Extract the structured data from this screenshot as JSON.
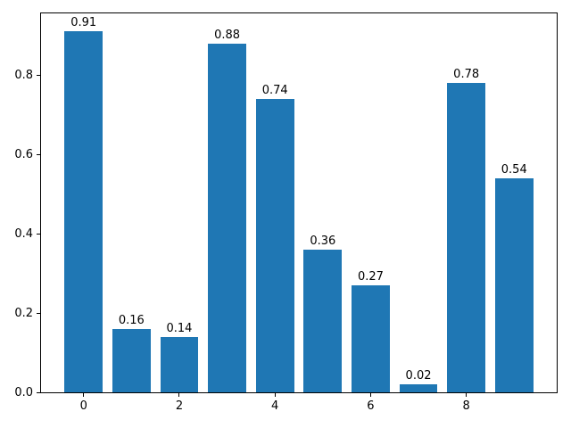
{
  "figure": {
    "background": "#ffffff",
    "spine_color": "#000000"
  },
  "chart_data": {
    "type": "bar",
    "title": "",
    "xlabel": "",
    "ylabel": "",
    "x": [
      0,
      1,
      2,
      3,
      4,
      5,
      6,
      7,
      8,
      9
    ],
    "values": [
      0.91,
      0.16,
      0.14,
      0.88,
      0.74,
      0.36,
      0.27,
      0.02,
      0.78,
      0.54
    ],
    "bar_labels": [
      "0.91",
      "0.16",
      "0.14",
      "0.88",
      "0.74",
      "0.36",
      "0.27",
      "0.02",
      "0.78",
      "0.54"
    ],
    "bar_color": "#1f77b4",
    "bar_width": 0.8,
    "xlim": [
      -0.89,
      9.89
    ],
    "ylim": [
      0,
      0.9555
    ],
    "x_ticks": [
      0,
      2,
      4,
      6,
      8
    ],
    "x_tick_labels": [
      "0",
      "2",
      "4",
      "6",
      "8"
    ],
    "y_ticks": [
      0.0,
      0.2,
      0.4,
      0.6,
      0.8
    ],
    "y_tick_labels": [
      "0.0",
      "0.2",
      "0.4",
      "0.6",
      "0.8"
    ],
    "grid": false,
    "legend": null
  }
}
